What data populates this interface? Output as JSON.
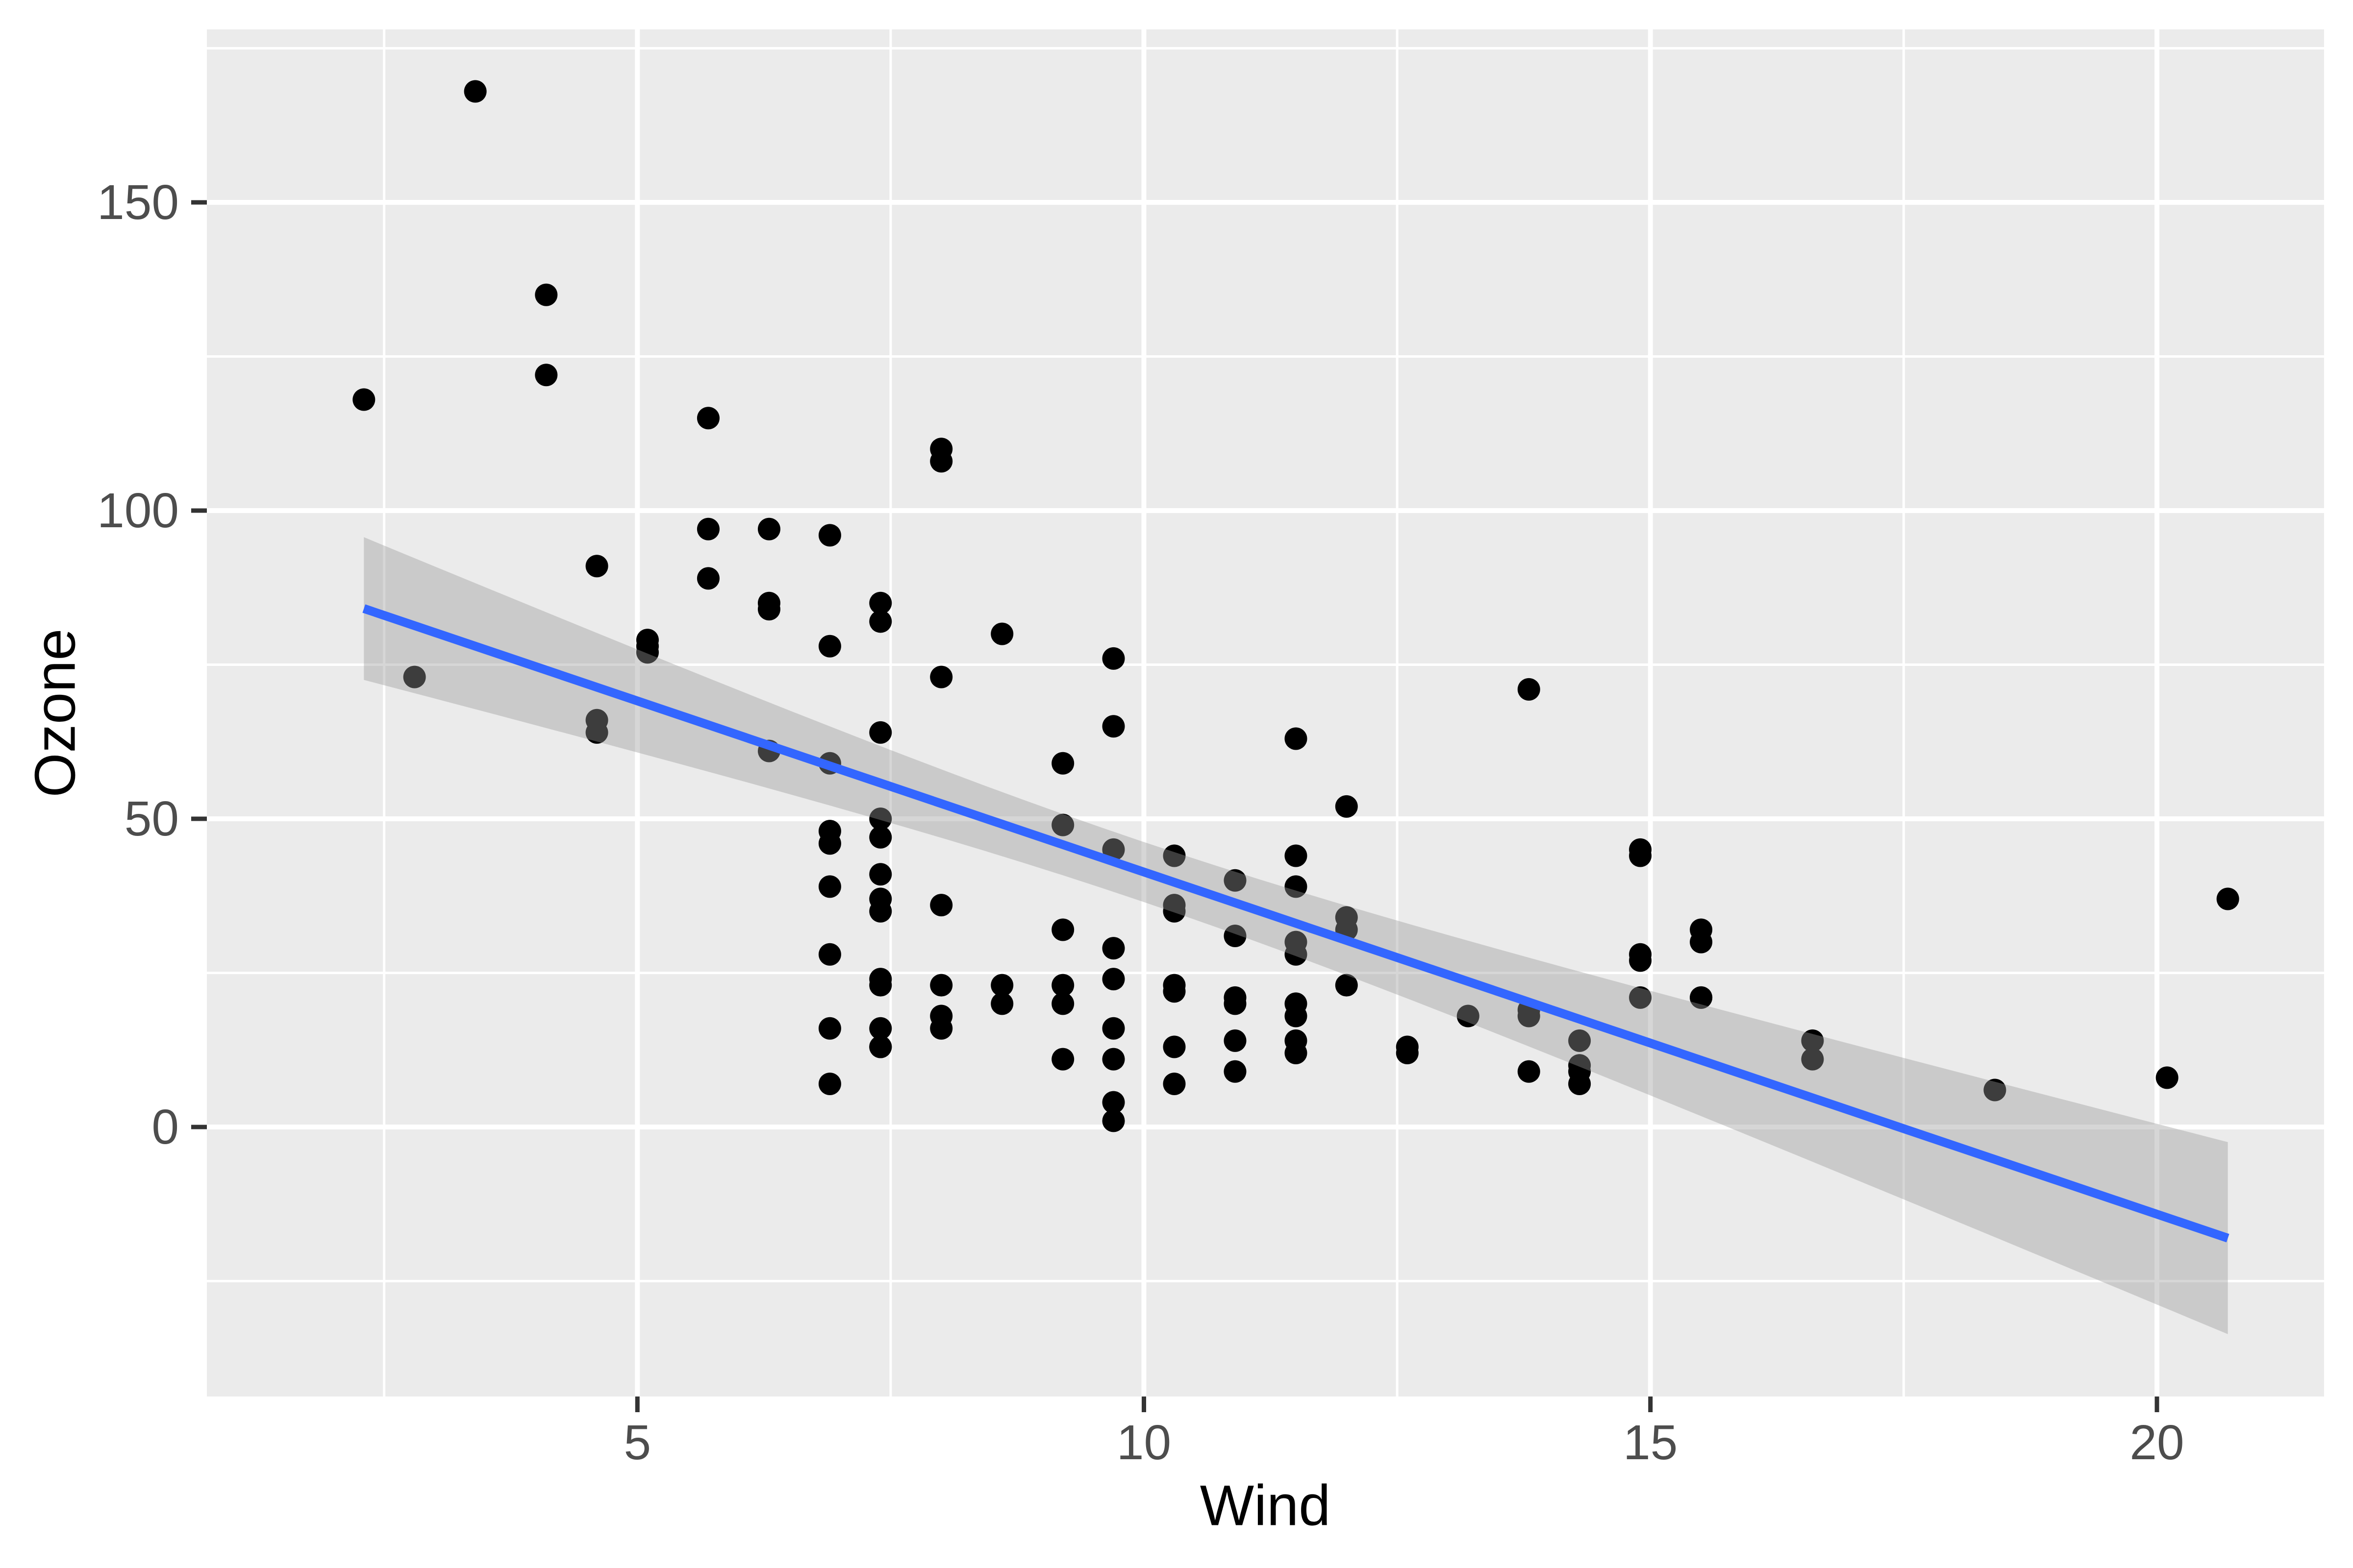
{
  "chart_data": {
    "type": "scatter",
    "title": "",
    "xlabel": "Wind",
    "ylabel": "Ozone",
    "x_tick_labels": [
      "5",
      "10",
      "15",
      "20"
    ],
    "x_ticks": [
      5,
      10,
      15,
      20
    ],
    "y_tick_labels": [
      "0",
      "50",
      "100",
      "150"
    ],
    "y_ticks": [
      0,
      50,
      100,
      150
    ],
    "x_minor_gridlines": [
      2.5,
      7.5,
      12.5,
      17.5
    ],
    "y_minor_gridlines": [
      -25,
      25,
      75,
      125,
      175
    ],
    "xlim": [
      0.75,
      21.65
    ],
    "ylim": [
      -43.72,
      178.06
    ],
    "grid_on": true,
    "legend_position": "none",
    "points": [
      [
        7.4,
        41
      ],
      [
        8.0,
        36
      ],
      [
        12.6,
        12
      ],
      [
        11.5,
        18
      ],
      [
        14.9,
        28
      ],
      [
        8.6,
        23
      ],
      [
        13.8,
        19
      ],
      [
        20.1,
        8
      ],
      [
        6.9,
        7
      ],
      [
        9.7,
        16
      ],
      [
        9.2,
        11
      ],
      [
        10.9,
        14
      ],
      [
        13.2,
        18
      ],
      [
        11.5,
        14
      ],
      [
        12.0,
        34
      ],
      [
        18.4,
        6
      ],
      [
        11.5,
        30
      ],
      [
        9.7,
        11
      ],
      [
        9.7,
        1
      ],
      [
        16.6,
        11
      ],
      [
        9.7,
        4
      ],
      [
        12.0,
        32
      ],
      [
        12.0,
        23
      ],
      [
        14.9,
        45
      ],
      [
        5.7,
        115
      ],
      [
        7.4,
        37
      ],
      [
        9.7,
        29
      ],
      [
        13.8,
        71
      ],
      [
        11.5,
        39
      ],
      [
        8.0,
        23
      ],
      [
        14.9,
        21
      ],
      [
        20.7,
        37
      ],
      [
        9.2,
        20
      ],
      [
        11.5,
        12
      ],
      [
        10.3,
        13
      ],
      [
        4.1,
        135
      ],
      [
        9.2,
        49
      ],
      [
        9.2,
        32
      ],
      [
        4.6,
        64
      ],
      [
        10.9,
        40
      ],
      [
        5.1,
        77
      ],
      [
        6.3,
        97
      ],
      [
        5.7,
        97
      ],
      [
        7.4,
        85
      ],
      [
        14.3,
        10
      ],
      [
        14.9,
        27
      ],
      [
        14.3,
        7
      ],
      [
        6.9,
        48
      ],
      [
        10.3,
        35
      ],
      [
        6.3,
        61
      ],
      [
        5.1,
        79
      ],
      [
        11.5,
        63
      ],
      [
        6.9,
        16
      ],
      [
        8.6,
        80
      ],
      [
        8.0,
        108
      ],
      [
        8.6,
        20
      ],
      [
        12.0,
        52
      ],
      [
        7.4,
        82
      ],
      [
        7.4,
        50
      ],
      [
        7.4,
        64
      ],
      [
        9.2,
        59
      ],
      [
        6.9,
        39
      ],
      [
        13.8,
        9
      ],
      [
        7.4,
        16
      ],
      [
        6.9,
        78
      ],
      [
        7.4,
        35
      ],
      [
        4.6,
        66
      ],
      [
        4.1,
        122
      ],
      [
        5.7,
        89
      ],
      [
        8.0,
        110
      ],
      [
        11.5,
        44
      ],
      [
        11.5,
        28
      ],
      [
        9.7,
        65
      ],
      [
        10.3,
        22
      ],
      [
        6.9,
        59
      ],
      [
        7.4,
        23
      ],
      [
        10.9,
        31
      ],
      [
        10.3,
        44
      ],
      [
        15.5,
        21
      ],
      [
        14.3,
        9
      ],
      [
        9.7,
        45
      ],
      [
        3.4,
        168
      ],
      [
        8.0,
        73
      ],
      [
        9.7,
        76
      ],
      [
        2.3,
        118
      ],
      [
        6.3,
        84
      ],
      [
        6.3,
        85
      ],
      [
        6.9,
        96
      ],
      [
        5.1,
        78
      ],
      [
        2.8,
        73
      ],
      [
        4.6,
        91
      ],
      [
        7.4,
        47
      ],
      [
        15.5,
        32
      ],
      [
        10.9,
        20
      ],
      [
        10.3,
        23
      ],
      [
        10.9,
        21
      ],
      [
        9.7,
        24
      ],
      [
        14.9,
        44
      ],
      [
        15.5,
        30
      ],
      [
        6.9,
        28
      ],
      [
        10.9,
        9
      ],
      [
        7.4,
        13
      ],
      [
        6.9,
        46
      ],
      [
        13.8,
        18
      ],
      [
        7.4,
        13
      ],
      [
        7.4,
        24
      ],
      [
        8.0,
        16
      ],
      [
        12.6,
        13
      ],
      [
        9.2,
        23
      ],
      [
        10.3,
        36
      ],
      [
        10.3,
        7
      ],
      [
        16.6,
        14
      ],
      [
        15.5,
        21
      ],
      [
        14.3,
        14
      ],
      [
        8.0,
        18
      ],
      [
        11.5,
        20
      ]
    ],
    "smooth": {
      "method": "lm",
      "intercept": 96.873,
      "slope": -5.5509,
      "x_range": [
        2.3,
        20.7
      ],
      "residual_se": 26.47,
      "n": 116,
      "mean_x": 9.94,
      "sxx": 1455,
      "t_crit": 1.981,
      "ci_level": 0.95
    },
    "colors": {
      "panel_bg": "#EBEBEB",
      "grid": "#FFFFFF",
      "tick_mark": "#333333",
      "tick_label": "#4D4D4D",
      "axis_title": "#000000",
      "point": "#000000",
      "line": "#3366FF",
      "band": "#999999",
      "band_opacity": 0.4,
      "outer_bg": "#FFFFFF"
    }
  }
}
